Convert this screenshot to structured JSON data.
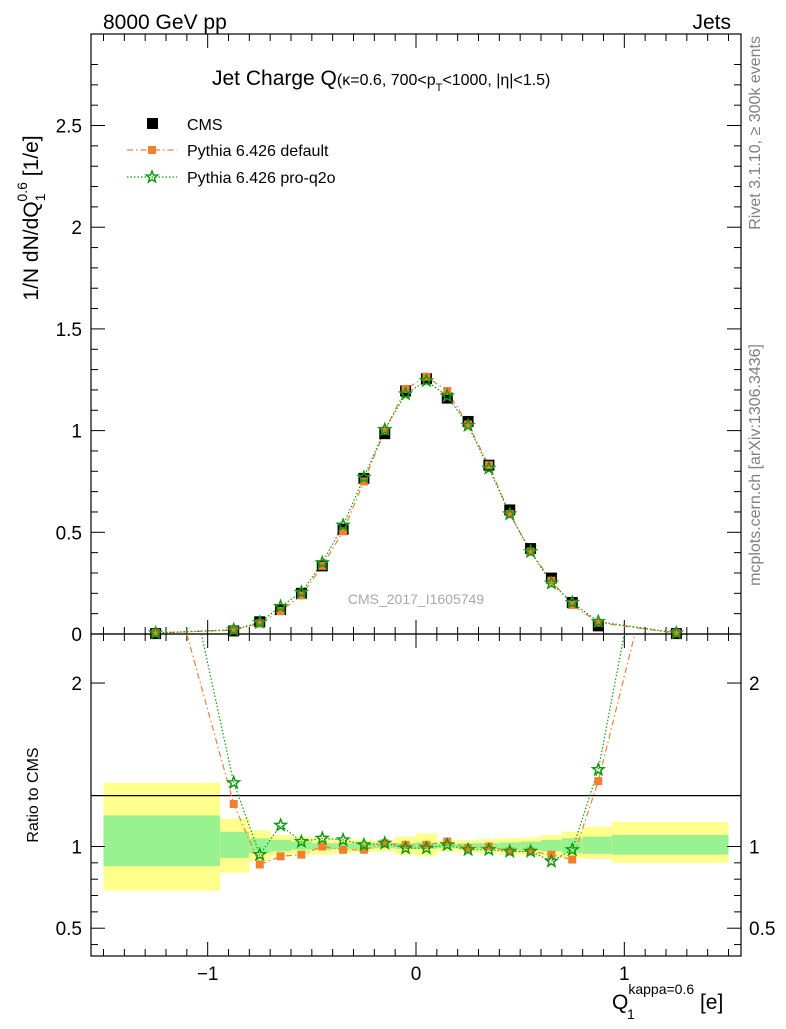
{
  "header": {
    "left": "8000 GeV pp",
    "right": "Jets"
  },
  "side": {
    "rivet": "Rivet 3.1.10, ≥ 300k events",
    "mcplots": "mcplots.cern.ch [arXiv:1306.3436]"
  },
  "main_plot": {
    "title_main": "Jet Charge Q",
    "title_sub_a": "(κ=0.6, 700<p",
    "title_sub_T": "T",
    "title_sub_b": "<1000, |η|<1.5)",
    "ylabel_a": "1/N dN/dQ",
    "ylabel_sub": "1",
    "ylabel_sup": "0.6",
    "ylabel_b": " [1/e]",
    "watermark": "CMS_2017_I1605749",
    "ylim": [
      0,
      2.95
    ],
    "yticks": [
      "0",
      "0.5",
      "1",
      "1.5",
      "2",
      "2.5"
    ]
  },
  "ratio_plot": {
    "ylabel": "Ratio to CMS",
    "ylim": [
      0.33,
      2.3
    ],
    "yticks": [
      "0.5",
      "1",
      "2"
    ]
  },
  "xaxis": {
    "label_Q": "Q",
    "label_sup": "kappa=0.6",
    "label_sub": "1",
    "label_unit": " [e]",
    "xlim": [
      -1.56,
      1.56
    ],
    "xticks": [
      "−1",
      "0",
      "1"
    ]
  },
  "legend": [
    {
      "name": "CMS",
      "color": "#000000"
    },
    {
      "name": "Pythia 6.426 default",
      "color": "#f08030"
    },
    {
      "name": "Pythia 6.426 pro-q2o",
      "color": "#129a12"
    }
  ],
  "chart_data": {
    "type": "scatter",
    "x": [
      -1.25,
      -0.875,
      -0.75,
      -0.65,
      -0.55,
      -0.45,
      -0.35,
      -0.25,
      -0.15,
      -0.05,
      0.05,
      0.15,
      0.25,
      0.35,
      0.45,
      0.55,
      0.65,
      0.75,
      0.875,
      1.25
    ],
    "series": [
      {
        "name": "CMS",
        "values": [
          0.002,
          0.015,
          0.06,
          0.12,
          0.2,
          0.335,
          0.515,
          0.765,
          0.985,
          1.195,
          1.255,
          1.16,
          1.045,
          0.83,
          0.61,
          0.42,
          0.275,
          0.155,
          0.04,
          0.002
        ]
      },
      {
        "name": "Pythia 6.426 default",
        "values": [
          0.005,
          0.019,
          0.053,
          0.113,
          0.19,
          0.335,
          0.505,
          0.75,
          1.0,
          1.205,
          1.265,
          1.195,
          1.03,
          0.83,
          0.59,
          0.405,
          0.262,
          0.143,
          0.056,
          0.004
        ]
      },
      {
        "name": "Pythia 6.426 pro-q2o",
        "values": [
          0.005,
          0.021,
          0.057,
          0.135,
          0.205,
          0.35,
          0.535,
          0.77,
          1.005,
          1.18,
          1.245,
          1.17,
          1.025,
          0.815,
          0.59,
          0.405,
          0.25,
          0.155,
          0.061,
          0.005
        ]
      }
    ],
    "ratio": {
      "x": [
        -0.875,
        -0.75,
        -0.65,
        -0.55,
        -0.45,
        -0.35,
        -0.25,
        -0.15,
        -0.05,
        0.05,
        0.15,
        0.25,
        0.35,
        0.45,
        0.55,
        0.65,
        0.75,
        0.875
      ],
      "default": [
        1.26,
        0.89,
        0.94,
        0.95,
        1.0,
        0.98,
        0.98,
        1.02,
        1.01,
        1.01,
        1.03,
        0.99,
        1.0,
        0.97,
        0.97,
        0.95,
        0.92,
        1.4
      ],
      "pro_q2o": [
        1.39,
        0.95,
        1.13,
        1.03,
        1.05,
        1.04,
        1.01,
        1.02,
        0.99,
        0.99,
        1.01,
        0.98,
        0.98,
        0.97,
        0.97,
        0.91,
        0.98,
        1.47
      ],
      "default_tail": [
        [
          -1.1,
          2.3
        ],
        [
          1.05,
          2.3
        ]
      ],
      "pro_tail": [
        [
          -1.03,
          2.3
        ],
        [
          1.0,
          2.3
        ]
      ],
      "bands": [
        {
          "x": [
            -1.5,
            -0.94
          ],
          "stat": [
            0.88,
            1.19
          ],
          "total": [
            0.73,
            1.39
          ]
        },
        {
          "x": [
            -0.94,
            -0.8
          ],
          "stat": [
            0.93,
            1.09
          ],
          "total": [
            0.84,
            1.17
          ]
        },
        {
          "x": [
            -0.8,
            -0.7
          ],
          "stat": [
            0.96,
            1.05
          ],
          "total": [
            0.91,
            1.1
          ]
        },
        {
          "x": [
            -0.7,
            -0.6
          ],
          "stat": [
            0.97,
            1.04
          ],
          "total": [
            0.94,
            1.07
          ]
        },
        {
          "x": [
            -0.6,
            -0.5
          ],
          "stat": [
            0.98,
            1.03
          ],
          "total": [
            0.95,
            1.06
          ]
        },
        {
          "x": [
            -0.5,
            -0.4
          ],
          "stat": [
            0.98,
            1.02
          ],
          "total": [
            0.95,
            1.05
          ]
        },
        {
          "x": [
            -0.4,
            -0.3
          ],
          "stat": [
            0.985,
            1.02
          ],
          "total": [
            0.96,
            1.045
          ]
        },
        {
          "x": [
            -0.3,
            -0.2
          ],
          "stat": [
            0.985,
            1.02
          ],
          "total": [
            0.965,
            1.04
          ]
        },
        {
          "x": [
            -0.2,
            -0.1
          ],
          "stat": [
            0.99,
            1.015
          ],
          "total": [
            0.97,
            1.035
          ]
        },
        {
          "x": [
            -0.1,
            0.0
          ],
          "stat": [
            0.985,
            1.02
          ],
          "total": [
            0.95,
            1.06
          ]
        },
        {
          "x": [
            0.0,
            0.1
          ],
          "stat": [
            0.985,
            1.025
          ],
          "total": [
            0.94,
            1.08
          ]
        },
        {
          "x": [
            0.1,
            0.2
          ],
          "stat": [
            0.99,
            1.015
          ],
          "total": [
            0.97,
            1.04
          ]
        },
        {
          "x": [
            0.2,
            0.3
          ],
          "stat": [
            0.985,
            1.02
          ],
          "total": [
            0.965,
            1.04
          ]
        },
        {
          "x": [
            0.3,
            0.4
          ],
          "stat": [
            0.985,
            1.02
          ],
          "total": [
            0.96,
            1.045
          ]
        },
        {
          "x": [
            0.4,
            0.5
          ],
          "stat": [
            0.98,
            1.025
          ],
          "total": [
            0.95,
            1.05
          ]
        },
        {
          "x": [
            0.5,
            0.6
          ],
          "stat": [
            0.975,
            1.03
          ],
          "total": [
            0.945,
            1.055
          ]
        },
        {
          "x": [
            0.6,
            0.7
          ],
          "stat": [
            0.97,
            1.04
          ],
          "total": [
            0.94,
            1.07
          ]
        },
        {
          "x": [
            0.7,
            0.8
          ],
          "stat": [
            0.96,
            1.05
          ],
          "total": [
            0.93,
            1.09
          ]
        },
        {
          "x": [
            0.8,
            0.94
          ],
          "stat": [
            0.955,
            1.06
          ],
          "total": [
            0.925,
            1.12
          ]
        },
        {
          "x": [
            0.94,
            1.5
          ],
          "stat": [
            0.95,
            1.07
          ],
          "total": [
            0.9,
            1.15
          ]
        }
      ]
    }
  }
}
